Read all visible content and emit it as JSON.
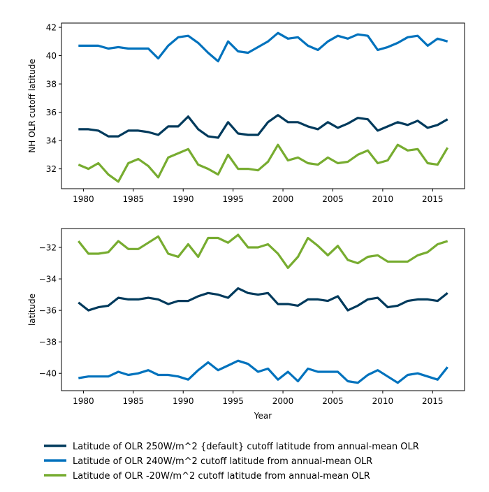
{
  "chart_data": [
    {
      "type": "line",
      "title": "",
      "xlabel": "",
      "ylabel": "NH OLR cutoff latitude",
      "xlim": [
        1977.8,
        2018.2
      ],
      "ylim": [
        30.6,
        42.3
      ],
      "xticks": [
        1980,
        1985,
        1990,
        1995,
        2000,
        2005,
        2010,
        2015
      ],
      "xtick_labels": [
        "1980",
        "1985",
        "1990",
        "1995",
        "2000",
        "2005",
        "2010",
        "2015"
      ],
      "yticks": [
        32,
        34,
        36,
        38,
        40,
        42
      ],
      "ytick_labels": [
        "32",
        "34",
        "36",
        "38",
        "40",
        "42"
      ],
      "grid": false,
      "x": [
        1979.5,
        1980.5,
        1981.5,
        1982.5,
        1983.5,
        1984.5,
        1985.5,
        1986.5,
        1987.5,
        1988.5,
        1989.5,
        1990.5,
        1991.5,
        1992.5,
        1993.5,
        1994.5,
        1995.5,
        1996.5,
        1997.5,
        1998.5,
        1999.5,
        2000.5,
        2001.5,
        2002.5,
        2003.5,
        2004.5,
        2005.5,
        2006.5,
        2007.5,
        2008.5,
        2009.5,
        2010.5,
        2011.5,
        2012.5,
        2013.5,
        2014.5,
        2015.5,
        2016.5
      ],
      "series": [
        {
          "color": "#003a5c",
          "values": [
            34.8,
            34.8,
            34.7,
            34.3,
            34.3,
            34.7,
            34.7,
            34.6,
            34.4,
            35.0,
            35.0,
            35.7,
            34.8,
            34.3,
            34.2,
            35.3,
            34.5,
            34.4,
            34.4,
            35.3,
            35.8,
            35.3,
            35.3,
            35.0,
            34.8,
            35.3,
            34.9,
            35.2,
            35.6,
            35.5,
            34.7,
            35.0,
            35.3,
            35.1,
            35.4,
            34.9,
            35.1,
            35.5
          ]
        },
        {
          "color": "#0072bd",
          "values": [
            40.7,
            40.7,
            40.7,
            40.5,
            40.6,
            40.5,
            40.5,
            40.5,
            39.8,
            40.7,
            41.3,
            41.4,
            40.9,
            40.2,
            39.6,
            41.0,
            40.3,
            40.2,
            40.6,
            41.0,
            41.6,
            41.2,
            41.3,
            40.7,
            40.4,
            41.0,
            41.4,
            41.2,
            41.5,
            41.4,
            40.4,
            40.6,
            40.9,
            41.3,
            41.4,
            40.7,
            41.2,
            41.0
          ]
        },
        {
          "color": "#77ac30",
          "values": [
            32.3,
            32.0,
            32.4,
            31.6,
            31.1,
            32.4,
            32.7,
            32.2,
            31.4,
            32.8,
            33.1,
            33.4,
            32.3,
            32.0,
            31.6,
            33.0,
            32.0,
            32.0,
            31.9,
            32.5,
            33.7,
            32.6,
            32.8,
            32.4,
            32.3,
            32.8,
            32.4,
            32.5,
            33.0,
            33.3,
            32.4,
            32.6,
            33.7,
            33.3,
            33.4,
            32.4,
            32.3,
            33.5
          ]
        }
      ]
    },
    {
      "type": "line",
      "title": "",
      "xlabel": "Year",
      "ylabel": "latitude",
      "xlim": [
        1977.8,
        2018.2
      ],
      "ylim": [
        -41.1,
        -30.8
      ],
      "xticks": [
        1980,
        1985,
        1990,
        1995,
        2000,
        2005,
        2010,
        2015
      ],
      "xtick_labels": [
        "1980",
        "1985",
        "1990",
        "1995",
        "2000",
        "2005",
        "2010",
        "2015"
      ],
      "yticks": [
        -40,
        -38,
        -36,
        -34,
        -32
      ],
      "ytick_labels": [
        "−40",
        "−38",
        "−36",
        "−34",
        "−32"
      ],
      "grid": false,
      "x": [
        1979.5,
        1980.5,
        1981.5,
        1982.5,
        1983.5,
        1984.5,
        1985.5,
        1986.5,
        1987.5,
        1988.5,
        1989.5,
        1990.5,
        1991.5,
        1992.5,
        1993.5,
        1994.5,
        1995.5,
        1996.5,
        1997.5,
        1998.5,
        1999.5,
        2000.5,
        2001.5,
        2002.5,
        2003.5,
        2004.5,
        2005.5,
        2006.5,
        2007.5,
        2008.5,
        2009.5,
        2010.5,
        2011.5,
        2012.5,
        2013.5,
        2014.5,
        2015.5,
        2016.5
      ],
      "series": [
        {
          "color": "#003a5c",
          "values": [
            -35.5,
            -36.0,
            -35.8,
            -35.7,
            -35.2,
            -35.3,
            -35.3,
            -35.2,
            -35.3,
            -35.6,
            -35.4,
            -35.4,
            -35.1,
            -34.9,
            -35.0,
            -35.2,
            -34.6,
            -34.9,
            -35.0,
            -34.9,
            -35.6,
            -35.6,
            -35.7,
            -35.3,
            -35.3,
            -35.4,
            -35.1,
            -36.0,
            -35.7,
            -35.3,
            -35.2,
            -35.8,
            -35.7,
            -35.4,
            -35.3,
            -35.3,
            -35.4,
            -34.9
          ]
        },
        {
          "color": "#0072bd",
          "values": [
            -40.3,
            -40.2,
            -40.2,
            -40.2,
            -39.9,
            -40.1,
            -40.0,
            -39.8,
            -40.1,
            -40.1,
            -40.2,
            -40.4,
            -39.8,
            -39.3,
            -39.8,
            -39.5,
            -39.2,
            -39.4,
            -39.9,
            -39.7,
            -40.4,
            -39.9,
            -40.5,
            -39.7,
            -39.9,
            -39.9,
            -39.9,
            -40.5,
            -40.6,
            -40.1,
            -39.8,
            -40.2,
            -40.6,
            -40.1,
            -40.0,
            -40.2,
            -40.4,
            -39.6
          ]
        },
        {
          "color": "#77ac30",
          "values": [
            -31.6,
            -32.4,
            -32.4,
            -32.3,
            -31.6,
            -32.1,
            -32.1,
            -31.7,
            -31.3,
            -32.4,
            -32.6,
            -31.8,
            -32.6,
            -31.4,
            -31.4,
            -31.7,
            -31.2,
            -32.0,
            -32.0,
            -31.8,
            -32.4,
            -33.3,
            -32.6,
            -31.4,
            -31.9,
            -32.5,
            -31.9,
            -32.8,
            -33.0,
            -32.6,
            -32.5,
            -32.9,
            -32.9,
            -32.9,
            -32.5,
            -32.3,
            -31.8,
            -31.6
          ]
        }
      ]
    }
  ],
  "legend": {
    "placement": "bottom",
    "entries": [
      {
        "label": "Latitude of OLR 250W/m^2 {default} cutoff latitude from annual-mean OLR",
        "color": "#003a5c"
      },
      {
        "label": "Latitude of OLR 240W/m^2 cutoff latitude from annual-mean OLR",
        "color": "#0072bd"
      },
      {
        "label": "Latitude of OLR -20W/m^2 cutoff latitude from annual-mean OLR",
        "color": "#77ac30"
      }
    ]
  }
}
